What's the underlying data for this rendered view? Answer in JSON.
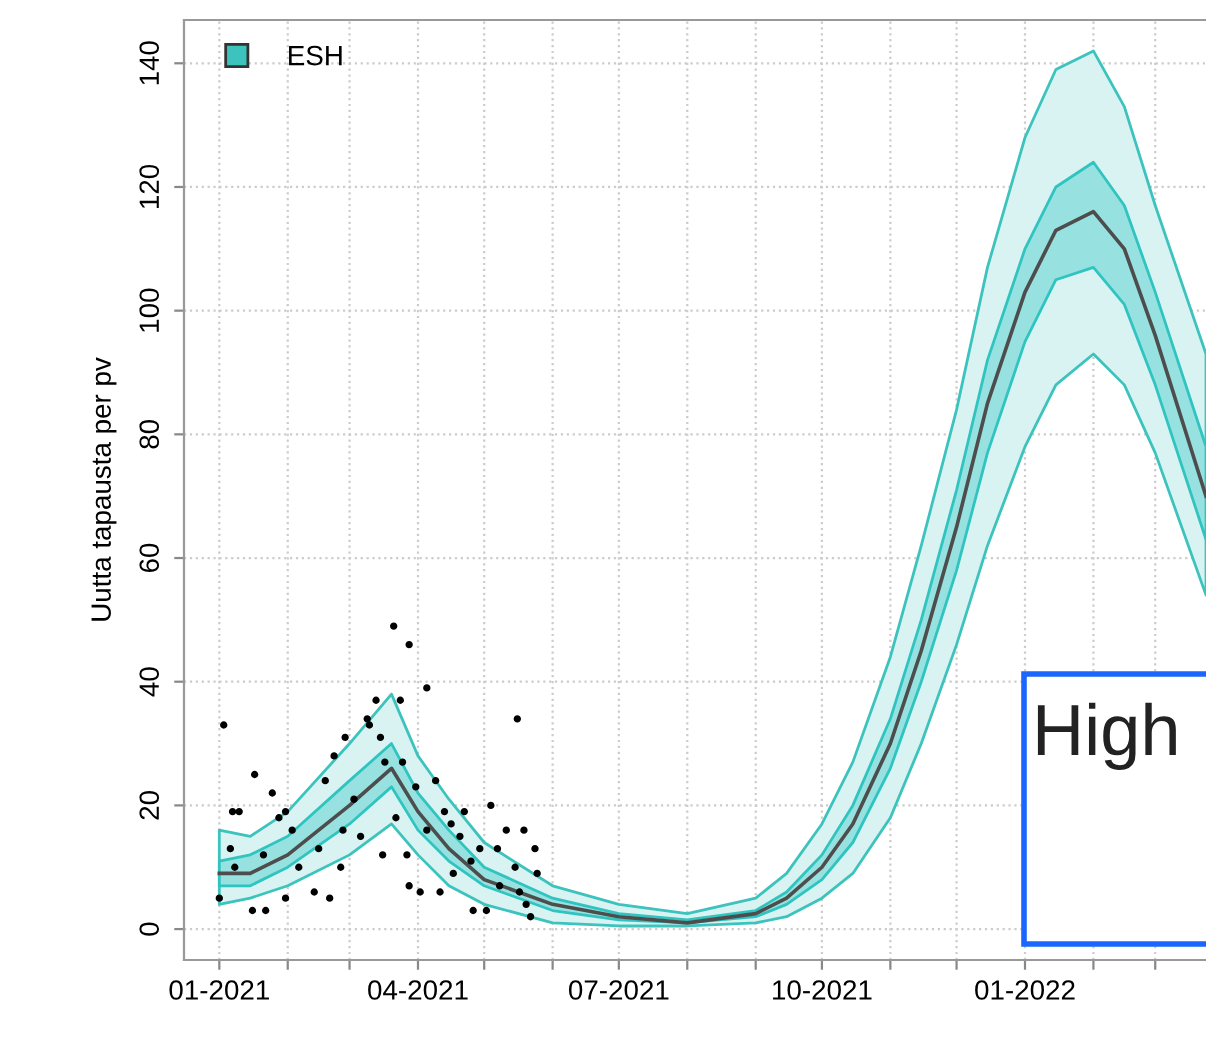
{
  "chart_data": {
    "type": "line",
    "ylabel": "Uutta tapausta per pv",
    "xlim": [
      "2020-12-16",
      "2022-03-24"
    ],
    "xticks": [
      {
        "value": "2021-01-01",
        "label": "01-2021"
      },
      {
        "value": "2021-02-01",
        "label": null
      },
      {
        "value": "2021-03-01",
        "label": null
      },
      {
        "value": "2021-04-01",
        "label": "04-2021"
      },
      {
        "value": "2021-05-01",
        "label": null
      },
      {
        "value": "2021-06-01",
        "label": null
      },
      {
        "value": "2021-07-01",
        "label": "07-2021"
      },
      {
        "value": "2021-08-01",
        "label": null
      },
      {
        "value": "2021-09-01",
        "label": null
      },
      {
        "value": "2021-10-01",
        "label": "10-2021"
      },
      {
        "value": "2021-11-01",
        "label": null
      },
      {
        "value": "2021-12-01",
        "label": null
      },
      {
        "value": "2022-01-01",
        "label": "01-2022"
      },
      {
        "value": "2022-02-01",
        "label": null
      },
      {
        "value": "2022-03-01",
        "label": null
      }
    ],
    "ylim": [
      -5,
      147
    ],
    "yticks": [
      0,
      20,
      40,
      60,
      80,
      100,
      120,
      140
    ],
    "grid": true,
    "legend": "top left",
    "annotations": [
      "High"
    ],
    "series": [
      {
        "name": "ESH",
        "color": "#3cc3bd",
        "x": [
          "2021-01-01",
          "2021-01-15",
          "2021-02-01",
          "2021-03-01",
          "2021-03-20",
          "2021-04-01",
          "2021-04-15",
          "2021-05-01",
          "2021-06-01",
          "2021-07-01",
          "2021-08-01",
          "2021-09-01",
          "2021-09-15",
          "2021-10-01",
          "2021-10-15",
          "2021-11-01",
          "2021-11-15",
          "2021-12-01",
          "2021-12-15",
          "2022-01-01",
          "2022-01-15",
          "2022-02-01",
          "2022-02-15",
          "2022-03-01",
          "2022-03-24"
        ],
        "values": [
          null,
          null,
          null,
          null,
          null,
          null,
          null,
          null,
          null,
          null,
          null,
          null,
          null,
          null,
          null,
          null,
          null,
          null,
          null,
          null,
          null,
          null,
          null,
          null,
          null
        ],
        "lower": [
          4,
          5,
          7,
          12,
          17,
          12,
          7,
          4,
          1,
          0.5,
          0.5,
          1,
          2,
          5,
          9,
          18,
          30,
          46,
          62,
          78,
          88,
          93,
          88,
          77,
          54
        ],
        "upper": [
          16,
          15,
          19,
          30,
          38,
          28,
          21,
          14,
          7,
          4,
          2.5,
          5,
          9,
          17,
          27,
          44,
          62,
          84,
          107,
          128,
          139,
          142,
          133,
          117,
          93
        ]
      },
      {
        "color": "#2fc4c0",
        "x": [
          "2021-01-01",
          "2021-01-15",
          "2021-02-01",
          "2021-03-01",
          "2021-03-20",
          "2021-04-01",
          "2021-04-15",
          "2021-05-01",
          "2021-06-01",
          "2021-07-01",
          "2021-08-01",
          "2021-09-01",
          "2021-09-15",
          "2021-10-01",
          "2021-10-15",
          "2021-11-01",
          "2021-11-15",
          "2021-12-01",
          "2021-12-15",
          "2022-01-01",
          "2022-01-15",
          "2022-02-01",
          "2022-02-15",
          "2022-03-01",
          "2022-03-24"
        ],
        "values": [
          null,
          null,
          null,
          null,
          null,
          null,
          null,
          null,
          null,
          null,
          null,
          null,
          null,
          null,
          null,
          null,
          null,
          null,
          null,
          null,
          null,
          null,
          null,
          null,
          null
        ],
        "lower": [
          7,
          7,
          10,
          17,
          23,
          16,
          11,
          7,
          3,
          1.5,
          1,
          2,
          4,
          8,
          14,
          26,
          40,
          58,
          77,
          95,
          105,
          107,
          101,
          88,
          63
        ],
        "upper": [
          11,
          12,
          15,
          24,
          30,
          22,
          16,
          10,
          5,
          2.5,
          1.5,
          3,
          6,
          12,
          20,
          34,
          50,
          71,
          92,
          110,
          120,
          124,
          117,
          103,
          78
        ]
      },
      {
        "color": "#4d4d4d",
        "x": [
          "2021-01-01",
          "2021-01-15",
          "2021-02-01",
          "2021-03-01",
          "2021-03-20",
          "2021-04-01",
          "2021-04-15",
          "2021-05-01",
          "2021-06-01",
          "2021-07-01",
          "2021-08-01",
          "2021-09-01",
          "2021-09-15",
          "2021-10-01",
          "2021-10-15",
          "2021-11-01",
          "2021-11-15",
          "2021-12-01",
          "2021-12-15",
          "2022-01-01",
          "2022-01-15",
          "2022-02-01",
          "2022-02-15",
          "2022-03-01",
          "2022-03-24"
        ],
        "values": [
          9,
          9,
          12,
          20,
          26,
          19,
          13,
          8,
          4,
          2,
          1,
          2.5,
          5,
          10,
          17,
          30,
          45,
          65,
          85,
          103,
          113,
          116,
          110,
          96,
          70
        ]
      },
      {
        "type": "scatter",
        "color": "#000000",
        "x": [
          "2021-01-03",
          "2021-01-01",
          "2021-01-06",
          "2021-01-07",
          "2021-01-10",
          "2021-01-17",
          "2021-01-08",
          "2021-01-16",
          "2021-01-22",
          "2021-01-25",
          "2021-01-21",
          "2021-01-28",
          "2021-01-31",
          "2021-01-31",
          "2021-02-03",
          "2021-02-06",
          "2021-02-13",
          "2021-02-15",
          "2021-02-18",
          "2021-02-20",
          "2021-02-22",
          "2021-02-25",
          "2021-02-26",
          "2021-02-27",
          "2021-03-03",
          "2021-03-06",
          "2021-03-09",
          "2021-03-10",
          "2021-03-13",
          "2021-03-15",
          "2021-03-16",
          "2021-03-17",
          "2021-03-21",
          "2021-03-22",
          "2021-03-24",
          "2021-03-25",
          "2021-03-27",
          "2021-03-28",
          "2021-03-28",
          "2021-03-31",
          "2021-04-02",
          "2021-04-05",
          "2021-04-05",
          "2021-04-09",
          "2021-04-11",
          "2021-04-13",
          "2021-04-16",
          "2021-04-17",
          "2021-04-20",
          "2021-04-22",
          "2021-04-25",
          "2021-04-26",
          "2021-04-29",
          "2021-05-02",
          "2021-05-04",
          "2021-05-07",
          "2021-05-08",
          "2021-05-11",
          "2021-05-15",
          "2021-05-16",
          "2021-05-17",
          "2021-05-19",
          "2021-05-20",
          "2021-05-24",
          "2021-05-25",
          "2021-05-22"
        ],
        "values": [
          33,
          5,
          13,
          19,
          19,
          25,
          10,
          3,
          3,
          22,
          12,
          18,
          19,
          5,
          16,
          10,
          6,
          13,
          24,
          5,
          28,
          10,
          16,
          31,
          21,
          15,
          34,
          33,
          37,
          31,
          12,
          27,
          49,
          18,
          37,
          27,
          12,
          46,
          7,
          23,
          6,
          39,
          16,
          24,
          6,
          19,
          17,
          9,
          15,
          19,
          11,
          3,
          13,
          3,
          20,
          13,
          7,
          16,
          10,
          34,
          6,
          16,
          4,
          13,
          9,
          2
        ]
      }
    ]
  }
}
